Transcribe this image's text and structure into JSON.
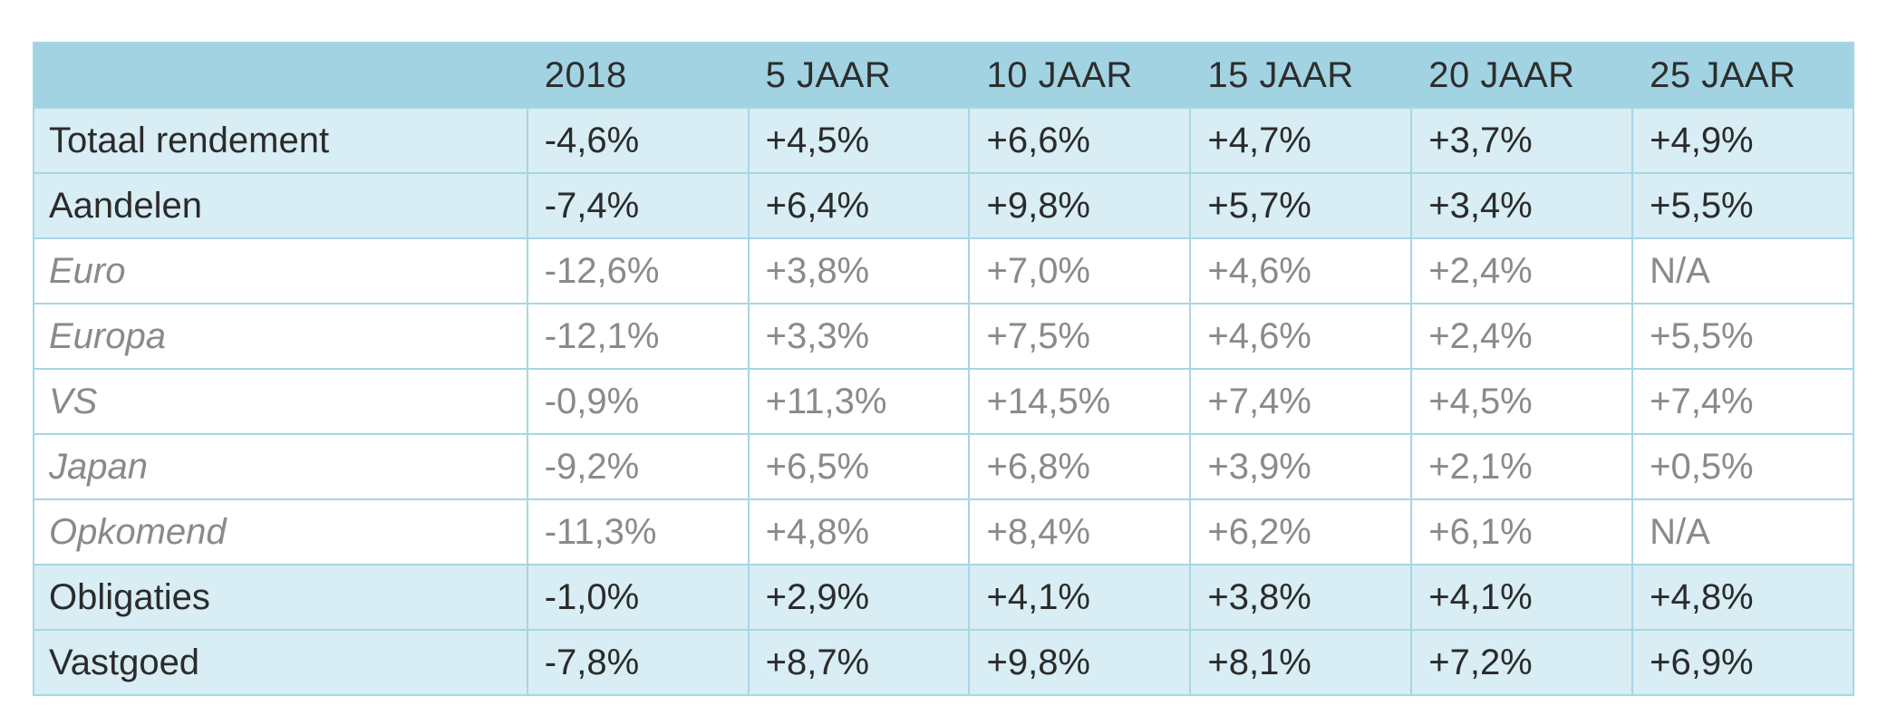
{
  "table": {
    "headers": [
      "",
      "2018",
      "5 JAAR",
      "10 JAAR",
      "15 JAAR",
      "20 JAAR",
      "25 JAAR"
    ],
    "rows": [
      {
        "label": "Totaal rendement",
        "values": [
          "-4,6%",
          "+4,5%",
          "+6,6%",
          "+4,7%",
          "+3,7%",
          "+4,9%"
        ]
      },
      {
        "label": "Aandelen",
        "values": [
          "-7,4%",
          "+6,4%",
          "+9,8%",
          "+5,7%",
          "+3,4%",
          "+5,5%"
        ]
      },
      {
        "label": "Euro",
        "values": [
          "-12,6%",
          "+3,8%",
          "+7,0%",
          "+4,6%",
          "+2,4%",
          "N/A"
        ]
      },
      {
        "label": "Europa",
        "values": [
          "-12,1%",
          "+3,3%",
          "+7,5%",
          "+4,6%",
          "+2,4%",
          "+5,5%"
        ]
      },
      {
        "label": "VS",
        "values": [
          "-0,9%",
          "+11,3%",
          "+14,5%",
          "+7,4%",
          "+4,5%",
          "+7,4%"
        ]
      },
      {
        "label": "Japan",
        "values": [
          "-9,2%",
          "+6,5%",
          "+6,8%",
          "+3,9%",
          "+2,1%",
          "+0,5%"
        ]
      },
      {
        "label": "Opkomend",
        "values": [
          "-11,3%",
          "+4,8%",
          "+8,4%",
          "+6,2%",
          "+6,1%",
          "N/A"
        ]
      },
      {
        "label": "Obligaties",
        "values": [
          "-1,0%",
          "+2,9%",
          "+4,1%",
          "+3,8%",
          "+4,1%",
          "+4,8%"
        ]
      },
      {
        "label": "Vastgoed",
        "values": [
          "-7,8%",
          "+8,7%",
          "+9,8%",
          "+8,1%",
          "+7,2%",
          "+6,9%"
        ]
      }
    ]
  },
  "colors": {
    "header_bg": "#a2d3e2",
    "shaded_row_bg": "#d8edf4",
    "grid": "#a7d6e5",
    "main_text": "#2b2b2b",
    "sub_text": "#8a8a8a"
  }
}
